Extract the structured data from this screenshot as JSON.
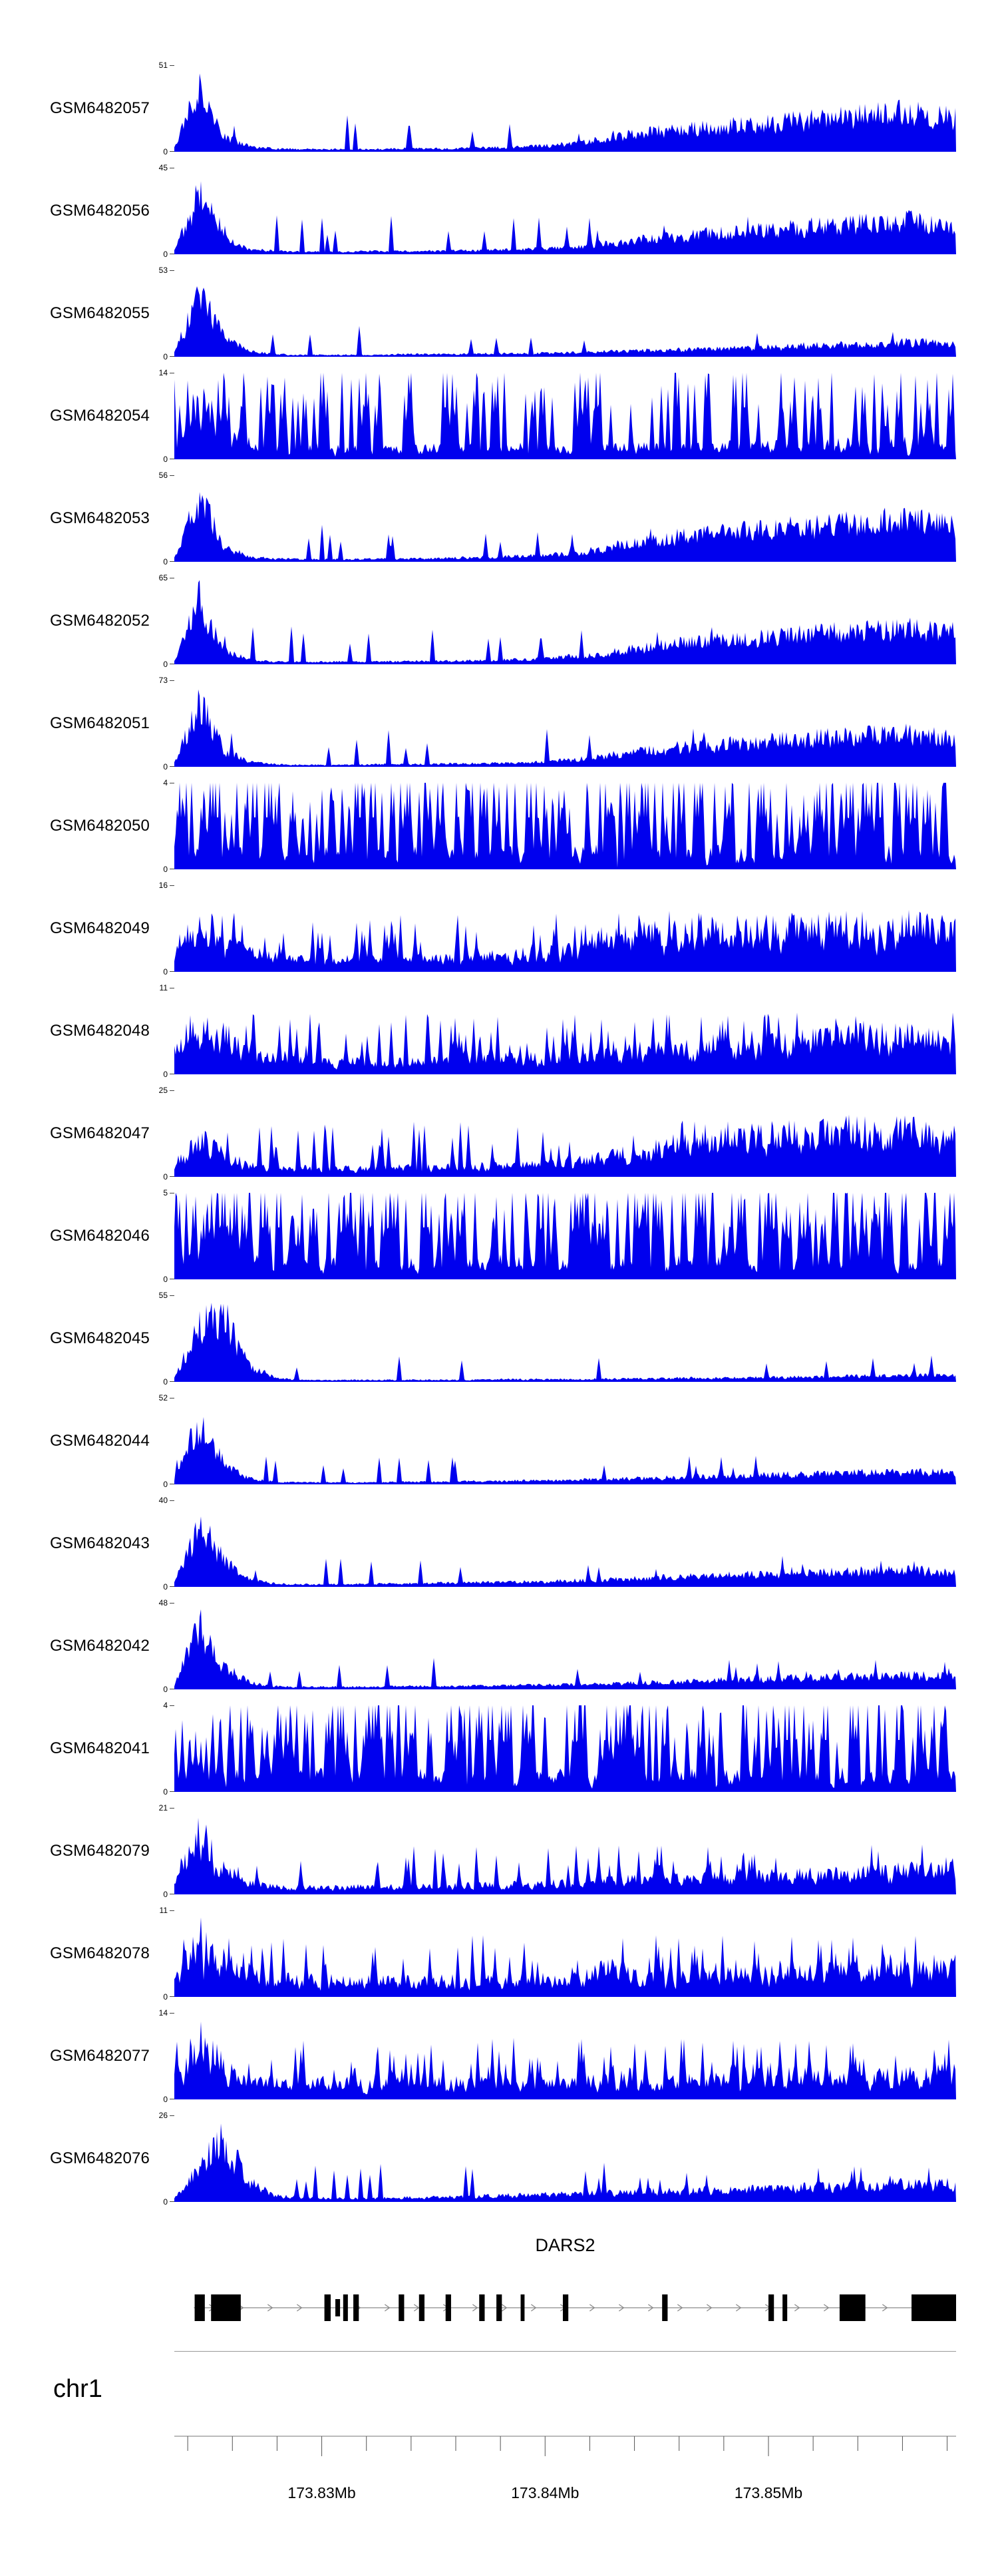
{
  "chart_data": {
    "type": "area",
    "title": "",
    "chromosome_label": "chr1",
    "accent_color": "#0000EE",
    "region_mb": {
      "start": 173.8234,
      "end": 173.8584
    },
    "axis": {
      "unit": "Mb",
      "minor_step_mb": 0.002,
      "first_minor_mb": 173.824,
      "major_ticks": [
        {
          "mb": 173.83,
          "label": "173.83Mb"
        },
        {
          "mb": 173.84,
          "label": "173.84Mb"
        },
        {
          "mb": 173.85,
          "label": "173.85Mb"
        }
      ]
    },
    "gene_track": {
      "gene": "DARS2",
      "strand": "right",
      "line_start_frac": 0.025,
      "line_end_frac": 1.0,
      "exons": [
        {
          "x": 0.026,
          "w": 0.013,
          "h": 40
        },
        {
          "x": 0.047,
          "w": 0.038,
          "h": 40
        },
        {
          "x": 0.192,
          "w": 0.008,
          "h": 40
        },
        {
          "x": 0.206,
          "w": 0.006,
          "h": 26
        },
        {
          "x": 0.216,
          "w": 0.006,
          "h": 40
        },
        {
          "x": 0.229,
          "w": 0.007,
          "h": 40
        },
        {
          "x": 0.287,
          "w": 0.007,
          "h": 40
        },
        {
          "x": 0.313,
          "w": 0.007,
          "h": 40
        },
        {
          "x": 0.347,
          "w": 0.007,
          "h": 40
        },
        {
          "x": 0.39,
          "w": 0.007,
          "h": 40
        },
        {
          "x": 0.412,
          "w": 0.007,
          "h": 40
        },
        {
          "x": 0.443,
          "w": 0.005,
          "h": 40
        },
        {
          "x": 0.497,
          "w": 0.007,
          "h": 40
        },
        {
          "x": 0.624,
          "w": 0.007,
          "h": 40
        },
        {
          "x": 0.76,
          "w": 0.007,
          "h": 40
        },
        {
          "x": 0.778,
          "w": 0.006,
          "h": 40
        },
        {
          "x": 0.851,
          "w": 0.033,
          "h": 40
        },
        {
          "x": 0.943,
          "w": 0.057,
          "h": 40
        }
      ]
    },
    "tracks": [
      {
        "label": "GSM6482057",
        "ymax": 51,
        "ymin": 0,
        "seed": 101,
        "jitter": 0.55,
        "spike_prob": 0.03,
        "spike_amp": 0.35,
        "profile": [
          0.05,
          1.0,
          0.22,
          0.08,
          0.05,
          0.04,
          0.04,
          0.04,
          0.04,
          0.05,
          0.05,
          0.05,
          0.06,
          0.07,
          0.08,
          0.1,
          0.14,
          0.19,
          0.26,
          0.31,
          0.34,
          0.37,
          0.4,
          0.43,
          0.46,
          0.49,
          0.52,
          0.56,
          0.58,
          0.62,
          0.56,
          0.52
        ]
      },
      {
        "label": "GSM6482056",
        "ymax": 45,
        "ymin": 0,
        "seed": 102,
        "jitter": 0.55,
        "spike_prob": 0.03,
        "spike_amp": 0.35,
        "profile": [
          0.05,
          1.0,
          0.25,
          0.08,
          0.05,
          0.04,
          0.04,
          0.04,
          0.05,
          0.05,
          0.05,
          0.06,
          0.06,
          0.07,
          0.08,
          0.09,
          0.12,
          0.16,
          0.21,
          0.25,
          0.28,
          0.31,
          0.34,
          0.36,
          0.39,
          0.42,
          0.45,
          0.47,
          0.49,
          0.52,
          0.47,
          0.45
        ]
      },
      {
        "label": "GSM6482055",
        "ymax": 53,
        "ymin": 0,
        "seed": 103,
        "jitter": 0.55,
        "spike_prob": 0.03,
        "spike_amp": 0.3,
        "profile": [
          0.04,
          1.0,
          0.28,
          0.08,
          0.04,
          0.03,
          0.03,
          0.03,
          0.03,
          0.04,
          0.04,
          0.04,
          0.05,
          0.05,
          0.05,
          0.06,
          0.07,
          0.08,
          0.09,
          0.1,
          0.11,
          0.12,
          0.13,
          0.14,
          0.15,
          0.17,
          0.18,
          0.19,
          0.21,
          0.23,
          0.22,
          0.2
        ]
      },
      {
        "label": "GSM6482054",
        "ymax": 14,
        "ymin": 0,
        "seed": 104,
        "jitter": 0.9,
        "spike_prob": 0.25,
        "spike_amp": 0.85,
        "profile": [
          0.25,
          1.0,
          0.45,
          0.25,
          0.2,
          0.22,
          0.2,
          0.2,
          0.18,
          0.18,
          0.18,
          0.2,
          0.18,
          0.18,
          0.2,
          0.18,
          0.2,
          0.2,
          0.2,
          0.22,
          0.2,
          0.22,
          0.22,
          0.24,
          0.22,
          0.24,
          0.25,
          0.27,
          0.25,
          0.28,
          0.3,
          0.28
        ]
      },
      {
        "label": "GSM6482053",
        "ymax": 56,
        "ymin": 0,
        "seed": 105,
        "jitter": 0.55,
        "spike_prob": 0.03,
        "spike_amp": 0.35,
        "profile": [
          0.05,
          1.0,
          0.22,
          0.08,
          0.05,
          0.04,
          0.04,
          0.04,
          0.05,
          0.05,
          0.05,
          0.06,
          0.07,
          0.08,
          0.09,
          0.11,
          0.15,
          0.21,
          0.28,
          0.34,
          0.39,
          0.43,
          0.47,
          0.49,
          0.52,
          0.54,
          0.57,
          0.6,
          0.62,
          0.65,
          0.6,
          0.56
        ]
      },
      {
        "label": "GSM6482052",
        "ymax": 65,
        "ymin": 0,
        "seed": 106,
        "jitter": 0.55,
        "spike_prob": 0.03,
        "spike_amp": 0.35,
        "profile": [
          0.04,
          1.0,
          0.2,
          0.07,
          0.04,
          0.04,
          0.04,
          0.04,
          0.04,
          0.05,
          0.05,
          0.05,
          0.06,
          0.07,
          0.08,
          0.1,
          0.13,
          0.17,
          0.23,
          0.28,
          0.32,
          0.35,
          0.38,
          0.41,
          0.44,
          0.46,
          0.49,
          0.51,
          0.54,
          0.57,
          0.52,
          0.49
        ]
      },
      {
        "label": "GSM6482051",
        "ymax": 73,
        "ymin": 0,
        "seed": 107,
        "jitter": 0.55,
        "spike_prob": 0.03,
        "spike_amp": 0.35,
        "profile": [
          0.04,
          1.0,
          0.25,
          0.08,
          0.04,
          0.03,
          0.03,
          0.03,
          0.04,
          0.04,
          0.04,
          0.05,
          0.05,
          0.06,
          0.07,
          0.09,
          0.12,
          0.16,
          0.22,
          0.26,
          0.3,
          0.33,
          0.36,
          0.38,
          0.41,
          0.43,
          0.45,
          0.47,
          0.49,
          0.51,
          0.47,
          0.44
        ]
      },
      {
        "label": "GSM6482050",
        "ymax": 4,
        "ymin": 0,
        "seed": 108,
        "jitter": 1.0,
        "spike_prob": 0.33,
        "spike_amp": 0.95,
        "profile": [
          0.28,
          0.32,
          0.3,
          0.28,
          0.3,
          0.28,
          0.3,
          0.28,
          0.3,
          0.28,
          0.3,
          0.3,
          0.28,
          0.3,
          0.28,
          0.3,
          0.28,
          0.3,
          0.3,
          0.28,
          0.3,
          0.28,
          0.3,
          0.3,
          0.28,
          0.3,
          0.28,
          0.3,
          0.3,
          0.28,
          0.3,
          0.3
        ]
      },
      {
        "label": "GSM6482049",
        "ymax": 16,
        "ymin": 0,
        "seed": 109,
        "jitter": 0.75,
        "spike_prob": 0.15,
        "spike_amp": 0.55,
        "profile": [
          0.35,
          0.85,
          0.5,
          0.3,
          0.25,
          0.22,
          0.2,
          0.2,
          0.2,
          0.2,
          0.22,
          0.22,
          0.24,
          0.26,
          0.3,
          0.32,
          0.36,
          0.55,
          0.6,
          0.6,
          0.62,
          0.64,
          0.66,
          0.67,
          0.66,
          0.68,
          0.7,
          0.72,
          0.7,
          0.72,
          0.7,
          0.68
        ]
      },
      {
        "label": "GSM6482048",
        "ymax": 11,
        "ymin": 0,
        "seed": 110,
        "jitter": 0.75,
        "spike_prob": 0.15,
        "spike_amp": 0.55,
        "profile": [
          0.45,
          0.9,
          0.6,
          0.4,
          0.3,
          0.25,
          0.22,
          0.2,
          0.2,
          0.2,
          0.22,
          0.22,
          0.24,
          0.25,
          0.26,
          0.28,
          0.3,
          0.32,
          0.35,
          0.38,
          0.4,
          0.42,
          0.45,
          0.48,
          0.5,
          0.53,
          0.56,
          0.6,
          0.62,
          0.65,
          0.6,
          0.56
        ]
      },
      {
        "label": "GSM6482047",
        "ymax": 25,
        "ymin": 0,
        "seed": 111,
        "jitter": 0.7,
        "spike_prob": 0.1,
        "spike_amp": 0.5,
        "profile": [
          0.25,
          0.6,
          0.32,
          0.18,
          0.14,
          0.14,
          0.14,
          0.14,
          0.14,
          0.15,
          0.15,
          0.16,
          0.17,
          0.18,
          0.2,
          0.22,
          0.25,
          0.3,
          0.38,
          0.44,
          0.5,
          0.55,
          0.6,
          0.63,
          0.66,
          0.7,
          0.73,
          0.75,
          0.7,
          0.72,
          0.66,
          0.6
        ]
      },
      {
        "label": "GSM6482046",
        "ymax": 5,
        "ymin": 0,
        "seed": 112,
        "jitter": 1.0,
        "spike_prob": 0.33,
        "spike_amp": 0.95,
        "profile": [
          0.3,
          0.34,
          0.3,
          0.28,
          0.3,
          0.28,
          0.3,
          0.28,
          0.3,
          0.3,
          0.28,
          0.3,
          0.28,
          0.3,
          0.3,
          0.28,
          0.3,
          0.28,
          0.3,
          0.3,
          0.28,
          0.3,
          0.3,
          0.28,
          0.3,
          0.28,
          0.3,
          0.3,
          0.28,
          0.3,
          0.3,
          0.28
        ]
      },
      {
        "label": "GSM6482045",
        "ymax": 55,
        "ymin": 0,
        "seed": 113,
        "jitter": 0.55,
        "spike_prob": 0.02,
        "spike_amp": 0.25,
        "profile": [
          0.05,
          0.85,
          1.0,
          0.25,
          0.06,
          0.03,
          0.03,
          0.03,
          0.03,
          0.03,
          0.03,
          0.03,
          0.03,
          0.04,
          0.04,
          0.04,
          0.04,
          0.05,
          0.05,
          0.05,
          0.06,
          0.06,
          0.06,
          0.07,
          0.07,
          0.08,
          0.08,
          0.09,
          0.09,
          0.1,
          0.1,
          0.1
        ]
      },
      {
        "label": "GSM6482044",
        "ymax": 52,
        "ymin": 0,
        "seed": 114,
        "jitter": 0.55,
        "spike_prob": 0.03,
        "spike_amp": 0.28,
        "profile": [
          0.04,
          1.0,
          0.3,
          0.09,
          0.04,
          0.03,
          0.03,
          0.03,
          0.03,
          0.04,
          0.04,
          0.04,
          0.05,
          0.05,
          0.06,
          0.06,
          0.07,
          0.08,
          0.09,
          0.1,
          0.11,
          0.12,
          0.13,
          0.14,
          0.15,
          0.16,
          0.17,
          0.18,
          0.19,
          0.2,
          0.19,
          0.18
        ]
      },
      {
        "label": "GSM6482043",
        "ymax": 40,
        "ymin": 0,
        "seed": 115,
        "jitter": 0.55,
        "spike_prob": 0.03,
        "spike_amp": 0.28,
        "profile": [
          0.05,
          0.95,
          0.4,
          0.11,
          0.05,
          0.04,
          0.04,
          0.04,
          0.05,
          0.05,
          0.06,
          0.06,
          0.07,
          0.07,
          0.08,
          0.09,
          0.1,
          0.11,
          0.13,
          0.14,
          0.16,
          0.17,
          0.18,
          0.19,
          0.2,
          0.21,
          0.23,
          0.24,
          0.25,
          0.26,
          0.24,
          0.22
        ]
      },
      {
        "label": "GSM6482042",
        "ymax": 48,
        "ymin": 0,
        "seed": 116,
        "jitter": 0.55,
        "spike_prob": 0.03,
        "spike_amp": 0.28,
        "profile": [
          0.05,
          1.0,
          0.35,
          0.1,
          0.05,
          0.04,
          0.04,
          0.04,
          0.04,
          0.05,
          0.05,
          0.05,
          0.06,
          0.06,
          0.07,
          0.07,
          0.08,
          0.09,
          0.1,
          0.11,
          0.12,
          0.13,
          0.15,
          0.16,
          0.17,
          0.18,
          0.19,
          0.2,
          0.21,
          0.22,
          0.21,
          0.2
        ]
      },
      {
        "label": "GSM6482041",
        "ymax": 4,
        "ymin": 0,
        "seed": 117,
        "jitter": 1.0,
        "spike_prob": 0.32,
        "spike_amp": 0.95,
        "profile": [
          0.28,
          0.32,
          0.3,
          0.28,
          0.3,
          0.3,
          0.28,
          0.3,
          0.28,
          0.3,
          0.28,
          0.3,
          0.3,
          0.28,
          0.3,
          0.28,
          0.3,
          0.3,
          0.28,
          0.3,
          0.28,
          0.3,
          0.28,
          0.3,
          0.3,
          0.28,
          0.3,
          0.28,
          0.3,
          0.3,
          0.28,
          0.3
        ]
      },
      {
        "label": "GSM6482079",
        "ymax": 21,
        "ymin": 0,
        "seed": 118,
        "jitter": 0.7,
        "spike_prob": 0.08,
        "spike_amp": 0.45,
        "profile": [
          0.15,
          1.0,
          0.4,
          0.18,
          0.12,
          0.12,
          0.12,
          0.12,
          0.12,
          0.13,
          0.14,
          0.14,
          0.15,
          0.16,
          0.17,
          0.18,
          0.2,
          0.22,
          0.23,
          0.25,
          0.26,
          0.27,
          0.28,
          0.29,
          0.3,
          0.31,
          0.32,
          0.34,
          0.35,
          0.4,
          0.45,
          0.5
        ]
      },
      {
        "label": "GSM6482078",
        "ymax": 11,
        "ymin": 0,
        "seed": 119,
        "jitter": 0.8,
        "spike_prob": 0.15,
        "spike_amp": 0.55,
        "profile": [
          0.25,
          1.0,
          0.55,
          0.35,
          0.3,
          0.28,
          0.28,
          0.26,
          0.25,
          0.25,
          0.26,
          0.27,
          0.26,
          0.28,
          0.28,
          0.3,
          0.3,
          0.5,
          0.35,
          0.32,
          0.34,
          0.35,
          0.37,
          0.35,
          0.38,
          0.4,
          0.44,
          0.4,
          0.45,
          0.5,
          0.44,
          0.52
        ]
      },
      {
        "label": "GSM6482077",
        "ymax": 14,
        "ymin": 0,
        "seed": 120,
        "jitter": 0.8,
        "spike_prob": 0.15,
        "spike_amp": 0.55,
        "profile": [
          0.3,
          1.0,
          0.5,
          0.28,
          0.25,
          0.27,
          0.28,
          0.27,
          0.25,
          0.27,
          0.25,
          0.27,
          0.27,
          0.29,
          0.27,
          0.29,
          0.29,
          0.29,
          0.31,
          0.29,
          0.31,
          0.31,
          0.33,
          0.31,
          0.34,
          0.34,
          0.36,
          0.34,
          0.37,
          0.39,
          0.37,
          0.34
        ]
      },
      {
        "label": "GSM6482076",
        "ymax": 26,
        "ymin": 0,
        "seed": 121,
        "jitter": 0.6,
        "spike_prob": 0.06,
        "spike_amp": 0.35,
        "profile": [
          0.05,
          0.55,
          1.0,
          0.3,
          0.1,
          0.07,
          0.06,
          0.06,
          0.06,
          0.07,
          0.07,
          0.08,
          0.09,
          0.1,
          0.11,
          0.12,
          0.13,
          0.14,
          0.15,
          0.16,
          0.17,
          0.18,
          0.19,
          0.2,
          0.21,
          0.23,
          0.24,
          0.25,
          0.27,
          0.29,
          0.27,
          0.29
        ]
      }
    ]
  }
}
